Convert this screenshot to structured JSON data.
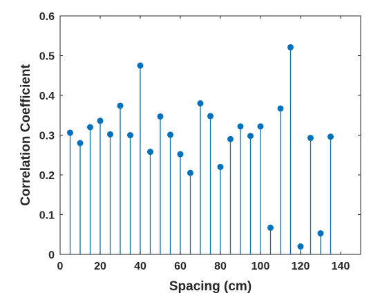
{
  "chart_data": {
    "type": "stem",
    "title": "",
    "xlabel": "Spacing (cm)",
    "ylabel": "Correlation Coefficient",
    "xlim": [
      0,
      150
    ],
    "ylim": [
      0,
      0.6
    ],
    "xticks": [
      0,
      20,
      40,
      60,
      80,
      100,
      120,
      140
    ],
    "yticks": [
      0,
      0.1,
      0.2,
      0.3,
      0.4,
      0.5,
      0.6
    ],
    "grid": false,
    "color": "#0072BD",
    "x": [
      5,
      10,
      15,
      20,
      25,
      30,
      35,
      40,
      45,
      50,
      55,
      60,
      65,
      70,
      75,
      80,
      85,
      90,
      95,
      100,
      105,
      110,
      115,
      120,
      125,
      130,
      135
    ],
    "y": [
      0.306,
      0.28,
      0.32,
      0.336,
      0.302,
      0.374,
      0.3,
      0.475,
      0.258,
      0.347,
      0.301,
      0.252,
      0.205,
      0.38,
      0.348,
      0.22,
      0.29,
      0.322,
      0.298,
      0.322,
      0.067,
      0.367,
      0.521,
      0.02,
      0.293,
      0.053,
      0.296
    ]
  }
}
